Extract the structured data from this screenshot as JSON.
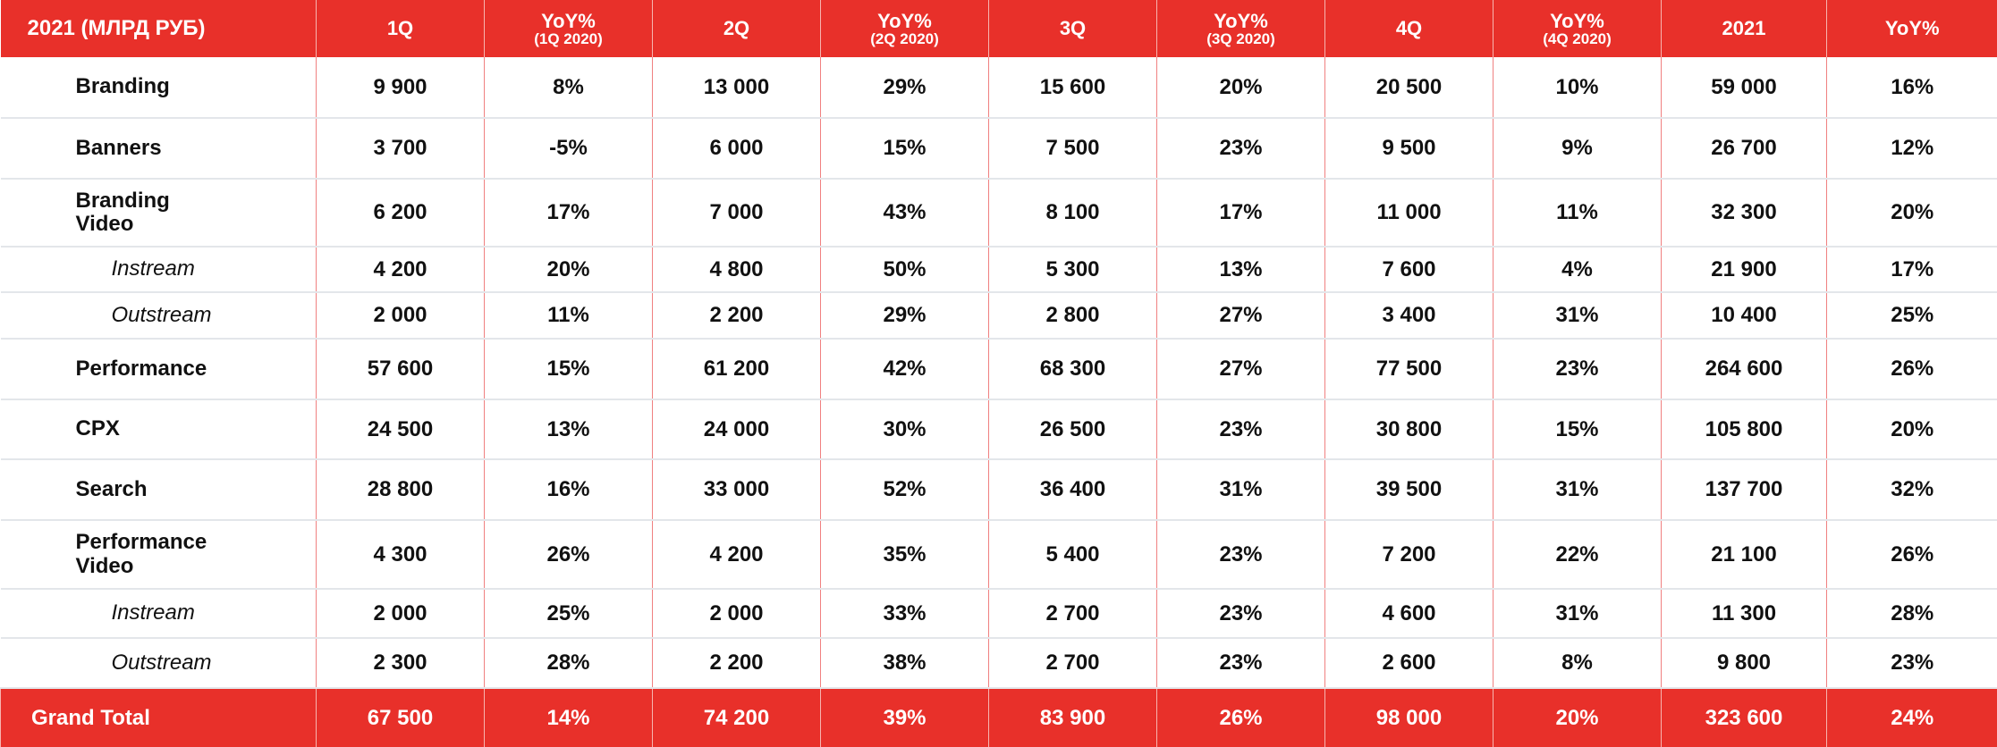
{
  "header": {
    "title": "2021 (МЛРД РУБ)",
    "columns": [
      {
        "label": "1Q",
        "sub": ""
      },
      {
        "label": "YoY%",
        "sub": "(1Q 2020)"
      },
      {
        "label": "2Q",
        "sub": ""
      },
      {
        "label": "YoY%",
        "sub": "(2Q 2020)"
      },
      {
        "label": "3Q",
        "sub": ""
      },
      {
        "label": "YoY%",
        "sub": "(3Q 2020)"
      },
      {
        "label": "4Q",
        "sub": ""
      },
      {
        "label": "YoY%",
        "sub": "(4Q 2020)"
      },
      {
        "label": "2021",
        "sub": ""
      },
      {
        "label": "YoY%",
        "sub": ""
      }
    ]
  },
  "rows": [
    {
      "label": "Branding",
      "child": false,
      "values": [
        "9 900",
        "8%",
        "13 000",
        "29%",
        "15 600",
        "20%",
        "20 500",
        "10%",
        "59 000",
        "16%"
      ]
    },
    {
      "label": "Banners",
      "child": false,
      "values": [
        "3 700",
        "-5%",
        "6 000",
        "15%",
        "7 500",
        "23%",
        "9 500",
        "9%",
        "26 700",
        "12%"
      ]
    },
    {
      "label": "Branding Video",
      "child": false,
      "values": [
        "6 200",
        "17%",
        "7 000",
        "43%",
        "8 100",
        "17%",
        "11 000",
        "11%",
        "32 300",
        "20%"
      ]
    },
    {
      "label": "Instream",
      "child": true,
      "values": [
        "4 200",
        "20%",
        "4 800",
        "50%",
        "5 300",
        "13%",
        "7 600",
        "4%",
        "21 900",
        "17%"
      ]
    },
    {
      "label": "Outstream",
      "child": true,
      "values": [
        "2 000",
        "11%",
        "2 200",
        "29%",
        "2 800",
        "27%",
        "3 400",
        "31%",
        "10 400",
        "25%"
      ]
    },
    {
      "label": "Performance",
      "child": false,
      "values": [
        "57 600",
        "15%",
        "61 200",
        "42%",
        "68 300",
        "27%",
        "77 500",
        "23%",
        "264 600",
        "26%"
      ]
    },
    {
      "label": "CPX",
      "child": false,
      "values": [
        "24 500",
        "13%",
        "24 000",
        "30%",
        "26 500",
        "23%",
        "30 800",
        "15%",
        "105 800",
        "20%"
      ]
    },
    {
      "label": "Search",
      "child": false,
      "values": [
        "28 800",
        "16%",
        "33 000",
        "52%",
        "36 400",
        "31%",
        "39 500",
        "31%",
        "137 700",
        "32%"
      ]
    },
    {
      "label": "Performance Video",
      "child": false,
      "values": [
        "4 300",
        "26%",
        "4 200",
        "35%",
        "5 400",
        "23%",
        "7 200",
        "22%",
        "21 100",
        "26%"
      ]
    },
    {
      "label": "Instream",
      "child": true,
      "values": [
        "2 000",
        "25%",
        "2 000",
        "33%",
        "2 700",
        "23%",
        "4 600",
        "31%",
        "11 300",
        "28%"
      ]
    },
    {
      "label": "Outstream",
      "child": true,
      "values": [
        "2 300",
        "28%",
        "2 200",
        "38%",
        "2 700",
        "23%",
        "2 600",
        "8%",
        "9 800",
        "23%"
      ]
    }
  ],
  "total": {
    "label": "Grand Total",
    "values": [
      "67 500",
      "14%",
      "74 200",
      "39%",
      "83 900",
      "26%",
      "98 000",
      "20%",
      "323 600",
      "24%"
    ]
  }
}
